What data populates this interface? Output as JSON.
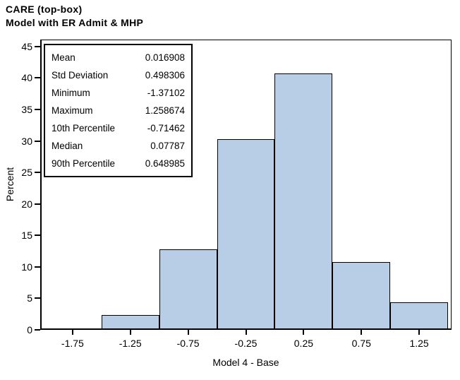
{
  "chart_data": {
    "type": "bar",
    "chart_kind": "histogram",
    "title": "CARE (top-box)",
    "subtitle": "Model with ER Admit & MHP",
    "xlabel": "Model 4 - Base",
    "ylabel": "Percent",
    "categories": [
      -1.75,
      -1.25,
      -0.75,
      -0.25,
      0.25,
      0.75,
      1.25
    ],
    "values": [
      0,
      2.4,
      12.8,
      30.3,
      40.7,
      10.8,
      4.4
    ],
    "bin_width": 0.5,
    "x_ticks": [
      -1.75,
      -1.25,
      -0.75,
      -0.25,
      0.25,
      0.75,
      1.25
    ],
    "x_tick_labels": [
      "-1.75",
      "-1.25",
      "-0.75",
      "-0.25",
      "0.25",
      "0.75",
      "1.25"
    ],
    "y_ticks": [
      0,
      5,
      10,
      15,
      20,
      25,
      30,
      35,
      40,
      45
    ],
    "y_tick_labels": [
      "0",
      "5",
      "10",
      "15",
      "20",
      "25",
      "30",
      "35",
      "40",
      "45"
    ],
    "xlim": [
      -2.03,
      1.53
    ],
    "ylim": [
      0,
      46.1
    ],
    "grid": false,
    "legend": null,
    "bar_fill": "#b8cde6",
    "bar_border": "#000000",
    "stats_box": {
      "rows": [
        {
          "label": "Mean",
          "value": "0.016908"
        },
        {
          "label": "Std Deviation",
          "value": "0.498306"
        },
        {
          "label": "Minimum",
          "value": "-1.37102"
        },
        {
          "label": "Maximum",
          "value": "1.258674"
        },
        {
          "label": "10th Percentile",
          "value": "-0.71462"
        },
        {
          "label": "Median",
          "value": "0.07787"
        },
        {
          "label": "90th Percentile",
          "value": "0.648985"
        }
      ]
    }
  }
}
